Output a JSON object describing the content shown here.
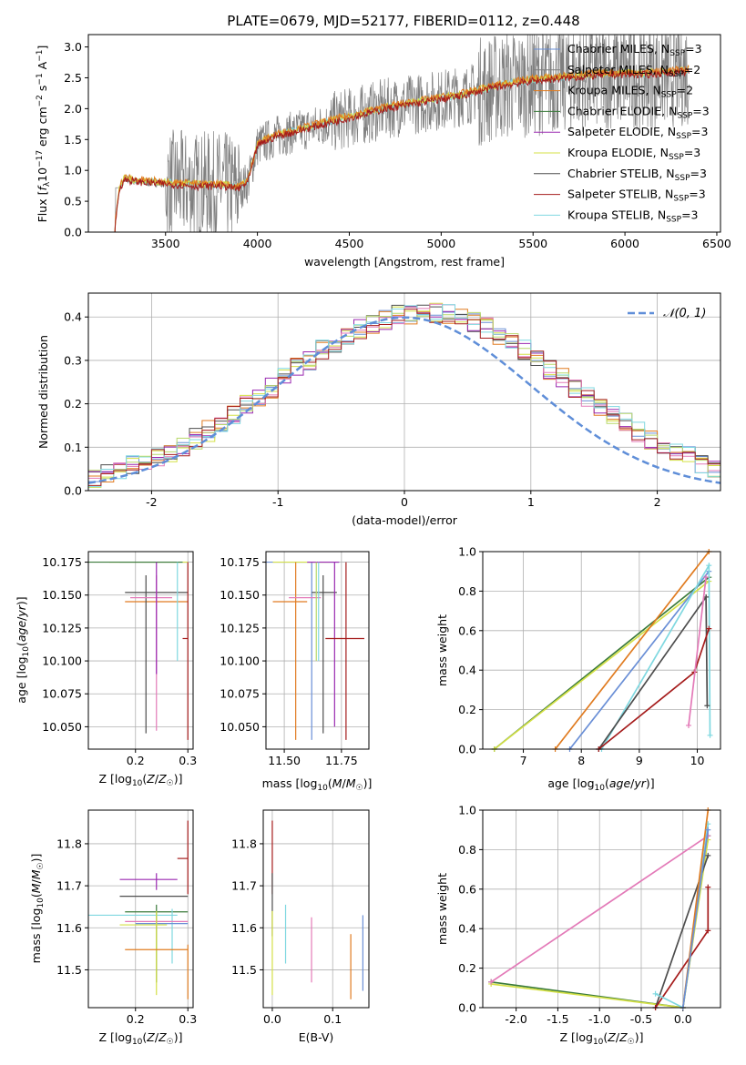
{
  "figure_title": "PLATE=0679, MJD=52177, FIBERID=0112, z=0.448",
  "colors": {
    "ch_miles": "#6a8fd6",
    "sa_miles": "#7f7f7f",
    "kr_miles": "#e07b20",
    "ch_elodie": "#3a7a3a",
    "sa_elodie": "#9a28b0",
    "kr_elodie": "#d4e046",
    "ch_stelib": "#4d4d4d",
    "sa_stelib": "#a51c1c",
    "kr_stelib": "#7fd8e0",
    "pink": "#e37ab8",
    "lime": "#b7d86a",
    "gauss": "#5f8ed8"
  },
  "chart_data": [
    {
      "type": "line",
      "title": "PLATE=0679, MJD=52177, FIBERID=0112, z=0.448",
      "xlabel": "wavelength [Angstrom, rest frame]",
      "ylabel": "Flux [f_λ 10^-17 erg cm^-2 s^-1 A^-1]",
      "xlim": [
        3080,
        6520
      ],
      "ylim": [
        0,
        3.2
      ],
      "xticks": [
        3500,
        4000,
        4500,
        5000,
        5500,
        6000,
        6500
      ],
      "yticks": [
        0.0,
        0.5,
        1.0,
        1.5,
        2.0,
        2.5,
        3.0
      ],
      "data_range": [
        3220,
        6350
      ],
      "continuum": {
        "x": [
          3220,
          3250,
          3280,
          3330,
          3400,
          3500,
          3600,
          3700,
          3800,
          3900,
          3950,
          4000,
          4100,
          4200,
          4300,
          4500,
          4700,
          4900,
          5100,
          5300,
          5500,
          5700,
          5900,
          6100,
          6350
        ],
        "y": [
          0.0,
          0.72,
          0.85,
          0.82,
          0.8,
          0.78,
          0.76,
          0.74,
          0.75,
          0.7,
          0.82,
          1.4,
          1.55,
          1.62,
          1.7,
          1.85,
          2.0,
          2.1,
          2.2,
          2.35,
          2.45,
          2.5,
          2.55,
          2.55,
          2.6
        ]
      },
      "legend": [
        {
          "label": "Chabrier MILES, N",
          "sub": "SSP",
          "eq": "=3"
        },
        {
          "label": "Salpeter MILES, N",
          "sub": "SSP",
          "eq": "=2"
        },
        {
          "label": "Kroupa MILES, N",
          "sub": "SSP",
          "eq": "=2"
        },
        {
          "label": "Chabrier ELODIE, N",
          "sub": "SSP",
          "eq": "=3"
        },
        {
          "label": "Salpeter ELODIE, N",
          "sub": "SSP",
          "eq": "=3"
        },
        {
          "label": "Kroupa ELODIE, N",
          "sub": "SSP",
          "eq": "=3"
        },
        {
          "label": "Chabrier STELIB, N",
          "sub": "SSP",
          "eq": "=3"
        },
        {
          "label": "Salpeter STELIB, N",
          "sub": "SSP",
          "eq": "=3"
        },
        {
          "label": "Kroupa STELIB, N",
          "sub": "SSP",
          "eq": "=3"
        }
      ],
      "legend_position": "right"
    },
    {
      "type": "histogram",
      "xlabel": "(data-model)/error",
      "ylabel": "Normed distribution",
      "xlim": [
        -2.5,
        2.5
      ],
      "ylim": [
        0,
        0.455
      ],
      "xticks": [
        -2,
        -1,
        0,
        1,
        2
      ],
      "yticks": [
        0.0,
        0.1,
        0.2,
        0.3,
        0.4
      ],
      "bin_width": 0.1,
      "gauss_label": "𝒩(0, 1)",
      "legend_position": "top-right",
      "grid": true
    },
    {
      "type": "errorbar",
      "xlabel": "Z [log10(Z/Z☉)]",
      "ylabel": "age [log10(age/yr)]",
      "xlim": [
        0.11,
        0.31
      ],
      "ylim": [
        10.033,
        10.183
      ],
      "xticks": [
        0.2,
        0.3
      ],
      "yticks": [
        10.05,
        10.075,
        10.1,
        10.125,
        10.15,
        10.175
      ],
      "points": [
        {
          "c": "ch_miles",
          "x": 0.28,
          "y": 10.175,
          "xe": [
            0.17,
            0.3
          ],
          "ye": [
            10.175,
            10.175
          ]
        },
        {
          "c": "kr_elodie",
          "x": 0.23,
          "y": 10.175,
          "xe": [
            0.15,
            0.3
          ],
          "ye": [
            10.175,
            10.175
          ]
        },
        {
          "c": "ch_elodie",
          "x": 0.23,
          "y": 10.175,
          "xe": [
            0.11,
            0.29
          ],
          "ye": [
            10.175,
            10.175
          ]
        },
        {
          "c": "kr_miles",
          "x": 0.24,
          "y": 10.145,
          "xe": [
            0.18,
            0.3
          ],
          "ye": [
            10.145,
            10.145
          ]
        },
        {
          "c": "ch_stelib",
          "x": 0.22,
          "y": 10.152,
          "xe": [
            0.18,
            0.3
          ],
          "ye": [
            10.045,
            10.165
          ]
        },
        {
          "c": "pink",
          "x": 0.24,
          "y": 10.148,
          "xe": [
            0.19,
            0.27
          ],
          "ye": [
            10.047,
            10.165
          ]
        },
        {
          "c": "sa_elodie",
          "x": 0.24,
          "y": 10.1,
          "xe": [
            0.24,
            0.24
          ],
          "ye": [
            10.09,
            10.175
          ]
        },
        {
          "c": "kr_stelib",
          "x": 0.28,
          "y": 10.17,
          "xe": [
            0.28,
            0.28
          ],
          "ye": [
            10.1,
            10.175
          ]
        },
        {
          "c": "sa_stelib",
          "x": 0.3,
          "y": 10.117,
          "xe": [
            0.29,
            0.3
          ],
          "ye": [
            10.04,
            10.175
          ]
        }
      ]
    },
    {
      "type": "errorbar",
      "xlabel": "mass [log10(M/M☉)]",
      "ylabel": "",
      "xlim": [
        11.42,
        11.87
      ],
      "ylim": [
        10.033,
        10.183
      ],
      "xticks": [
        11.5,
        11.75
      ],
      "yticks": [
        10.05,
        10.075,
        10.1,
        10.125,
        10.15,
        10.175
      ],
      "points": [
        {
          "c": "ch_miles",
          "x": 11.62,
          "y": 10.175,
          "xe": [
            11.42,
            11.74
          ],
          "ye": [
            10.04,
            10.175
          ]
        },
        {
          "c": "kr_elodie",
          "x": 11.62,
          "y": 10.175,
          "xe": [
            11.45,
            11.7
          ],
          "ye": [
            10.175,
            10.175
          ]
        },
        {
          "c": "kr_miles",
          "x": 11.55,
          "y": 10.145,
          "xe": [
            11.45,
            11.6
          ],
          "ye": [
            10.04,
            10.175
          ]
        },
        {
          "c": "pink",
          "x": 11.6,
          "y": 10.148,
          "xe": [
            11.52,
            11.66
          ],
          "ye": [
            10.148,
            10.148
          ]
        },
        {
          "c": "ch_stelib",
          "x": 11.67,
          "y": 10.152,
          "xe": [
            11.62,
            11.73
          ],
          "ye": [
            10.045,
            10.165
          ]
        },
        {
          "c": "sa_elodie",
          "x": 11.72,
          "y": 10.175,
          "xe": [
            11.6,
            11.74
          ],
          "ye": [
            10.05,
            10.175
          ]
        },
        {
          "c": "kr_stelib",
          "x": 11.65,
          "y": 10.17,
          "xe": [
            11.65,
            11.65
          ],
          "ye": [
            10.1,
            10.175
          ]
        },
        {
          "c": "lime",
          "x": 11.64,
          "y": 10.17,
          "xe": [
            11.64,
            11.64
          ],
          "ye": [
            10.1,
            10.175
          ]
        },
        {
          "c": "sa_stelib",
          "x": 11.77,
          "y": 10.117,
          "xe": [
            11.68,
            11.85
          ],
          "ye": [
            10.04,
            10.175
          ]
        }
      ]
    },
    {
      "type": "line",
      "xlabel": "age [log10(age/yr)]",
      "ylabel": "mass weight",
      "xlim": [
        6.3,
        10.4
      ],
      "ylim": [
        0,
        1.0
      ],
      "xticks": [
        7,
        8,
        9,
        10
      ],
      "yticks": [
        0.0,
        0.2,
        0.4,
        0.6,
        0.8,
        1.0
      ],
      "series": [
        {
          "c": "ch_elodie",
          "x": [
            6.5,
            10.2
          ],
          "y": [
            0.0,
            0.87
          ]
        },
        {
          "c": "kr_elodie",
          "x": [
            6.5,
            10.2
          ],
          "y": [
            0.0,
            0.85
          ]
        },
        {
          "c": "kr_miles",
          "x": [
            7.55,
            10.2
          ],
          "y": [
            0.0,
            1.0
          ]
        },
        {
          "c": "ch_miles",
          "x": [
            7.8,
            10.2
          ],
          "y": [
            0.0,
            0.9
          ]
        },
        {
          "c": "kr_stelib",
          "x": [
            8.35,
            10.2,
            10.22
          ],
          "y": [
            0.0,
            0.93,
            0.07
          ]
        },
        {
          "c": "ch_stelib",
          "x": [
            8.3,
            10.15,
            10.17
          ],
          "y": [
            0.0,
            0.77,
            0.22
          ]
        },
        {
          "c": "sa_stelib",
          "x": [
            8.3,
            9.95,
            10.2
          ],
          "y": [
            0.0,
            0.39,
            0.61
          ]
        },
        {
          "c": "pink",
          "x": [
            9.85,
            10.15
          ],
          "y": [
            0.12,
            0.87
          ]
        }
      ]
    },
    {
      "type": "errorbar",
      "xlabel": "Z [log10(Z/Z☉)]",
      "ylabel": "mass [log10(M/M☉)]",
      "xlim": [
        0.11,
        0.31
      ],
      "ylim": [
        11.41,
        11.88
      ],
      "xticks": [
        0.2,
        0.3
      ],
      "yticks": [
        11.5,
        11.6,
        11.7,
        11.8
      ],
      "points": [
        {
          "c": "sa_stelib",
          "x": 0.3,
          "y": 11.765,
          "xe": [
            0.28,
            0.3
          ],
          "ye": [
            11.68,
            11.855
          ]
        },
        {
          "c": "sa_elodie",
          "x": 0.24,
          "y": 11.715,
          "xe": [
            0.17,
            0.28
          ],
          "ye": [
            11.69,
            11.73
          ]
        },
        {
          "c": "ch_stelib",
          "x": 0.22,
          "y": 11.675,
          "xe": [
            0.17,
            0.3
          ],
          "ye": [
            11.675,
            11.675
          ]
        },
        {
          "c": "ch_elodie",
          "x": 0.24,
          "y": 11.638,
          "xe": [
            0.18,
            0.3
          ],
          "ye": [
            11.47,
            11.655
          ]
        },
        {
          "c": "kr_stelib",
          "x": 0.27,
          "y": 11.63,
          "xe": [
            0.11,
            0.28
          ],
          "ye": [
            11.515,
            11.645
          ]
        },
        {
          "c": "pink",
          "x": 0.23,
          "y": 11.615,
          "xe": [
            0.18,
            0.3
          ],
          "ye": [
            11.615,
            11.615
          ]
        },
        {
          "c": "ch_miles",
          "x": 0.24,
          "y": 11.61,
          "xe": [
            0.2,
            0.3
          ],
          "ye": [
            11.61,
            11.61
          ]
        },
        {
          "c": "kr_elodie",
          "x": 0.24,
          "y": 11.607,
          "xe": [
            0.17,
            0.26
          ],
          "ye": [
            11.44,
            11.64
          ]
        },
        {
          "c": "kr_miles",
          "x": 0.3,
          "y": 11.548,
          "xe": [
            0.18,
            0.3
          ],
          "ye": [
            11.43,
            11.56
          ]
        }
      ]
    },
    {
      "type": "errorbar",
      "xlabel": "E(B-V)",
      "ylabel": "",
      "xlim": [
        -0.015,
        0.16
      ],
      "ylim": [
        11.41,
        11.88
      ],
      "xticks": [
        0.0,
        0.1
      ],
      "yticks": [
        11.5,
        11.6,
        11.7,
        11.8
      ],
      "points": [
        {
          "c": "sa_stelib",
          "x": 0.0,
          "y": 11.765,
          "ye": [
            11.68,
            11.855
          ]
        },
        {
          "c": "ch_stelib",
          "x": 0.0,
          "y": 11.675,
          "ye": [
            11.58,
            11.73
          ]
        },
        {
          "c": "kr_elodie",
          "x": 0.0,
          "y": 11.55,
          "ye": [
            11.44,
            11.64
          ]
        },
        {
          "c": "kr_stelib",
          "x": 0.022,
          "y": 11.58,
          "ye": [
            11.515,
            11.655
          ]
        },
        {
          "c": "pink",
          "x": 0.065,
          "y": 11.55,
          "ye": [
            11.47,
            11.625
          ]
        },
        {
          "c": "kr_miles",
          "x": 0.13,
          "y": 11.5,
          "ye": [
            11.43,
            11.585
          ]
        },
        {
          "c": "ch_miles",
          "x": 0.15,
          "y": 11.55,
          "ye": [
            11.45,
            11.63
          ]
        }
      ]
    },
    {
      "type": "line",
      "xlabel": "Z [log10(Z/Z☉)]",
      "ylabel": "mass weight",
      "xlim": [
        -2.4,
        0.45
      ],
      "ylim": [
        0,
        1.0
      ],
      "xticks": [
        -2.0,
        -1.5,
        -1.0,
        -0.5,
        0.0
      ],
      "yticks": [
        0.0,
        0.2,
        0.4,
        0.6,
        0.8,
        1.0
      ],
      "series": [
        {
          "c": "ch_elodie",
          "x": [
            -2.3,
            0.0,
            0.3
          ],
          "y": [
            0.13,
            0.0,
            0.87
          ]
        },
        {
          "c": "kr_elodie",
          "x": [
            -2.3,
            0.0,
            0.3
          ],
          "y": [
            0.12,
            0.0,
            0.85
          ]
        },
        {
          "c": "pink",
          "x": [
            -2.3,
            0.3
          ],
          "y": [
            0.13,
            0.87
          ]
        },
        {
          "c": "ch_stelib",
          "x": [
            -0.33,
            0.3
          ],
          "y": [
            0.0,
            0.77
          ]
        },
        {
          "c": "sa_stelib",
          "x": [
            -0.33,
            0.3,
            0.3
          ],
          "y": [
            0.0,
            0.39,
            0.61
          ]
        },
        {
          "c": "kr_stelib",
          "x": [
            -0.33,
            0.0,
            0.3
          ],
          "y": [
            0.07,
            0.0,
            0.93
          ]
        },
        {
          "c": "kr_miles",
          "x": [
            0.0,
            0.3
          ],
          "y": [
            0.0,
            1.0
          ]
        },
        {
          "c": "ch_miles",
          "x": [
            0.0,
            0.3
          ],
          "y": [
            0.0,
            0.9
          ]
        }
      ]
    }
  ]
}
